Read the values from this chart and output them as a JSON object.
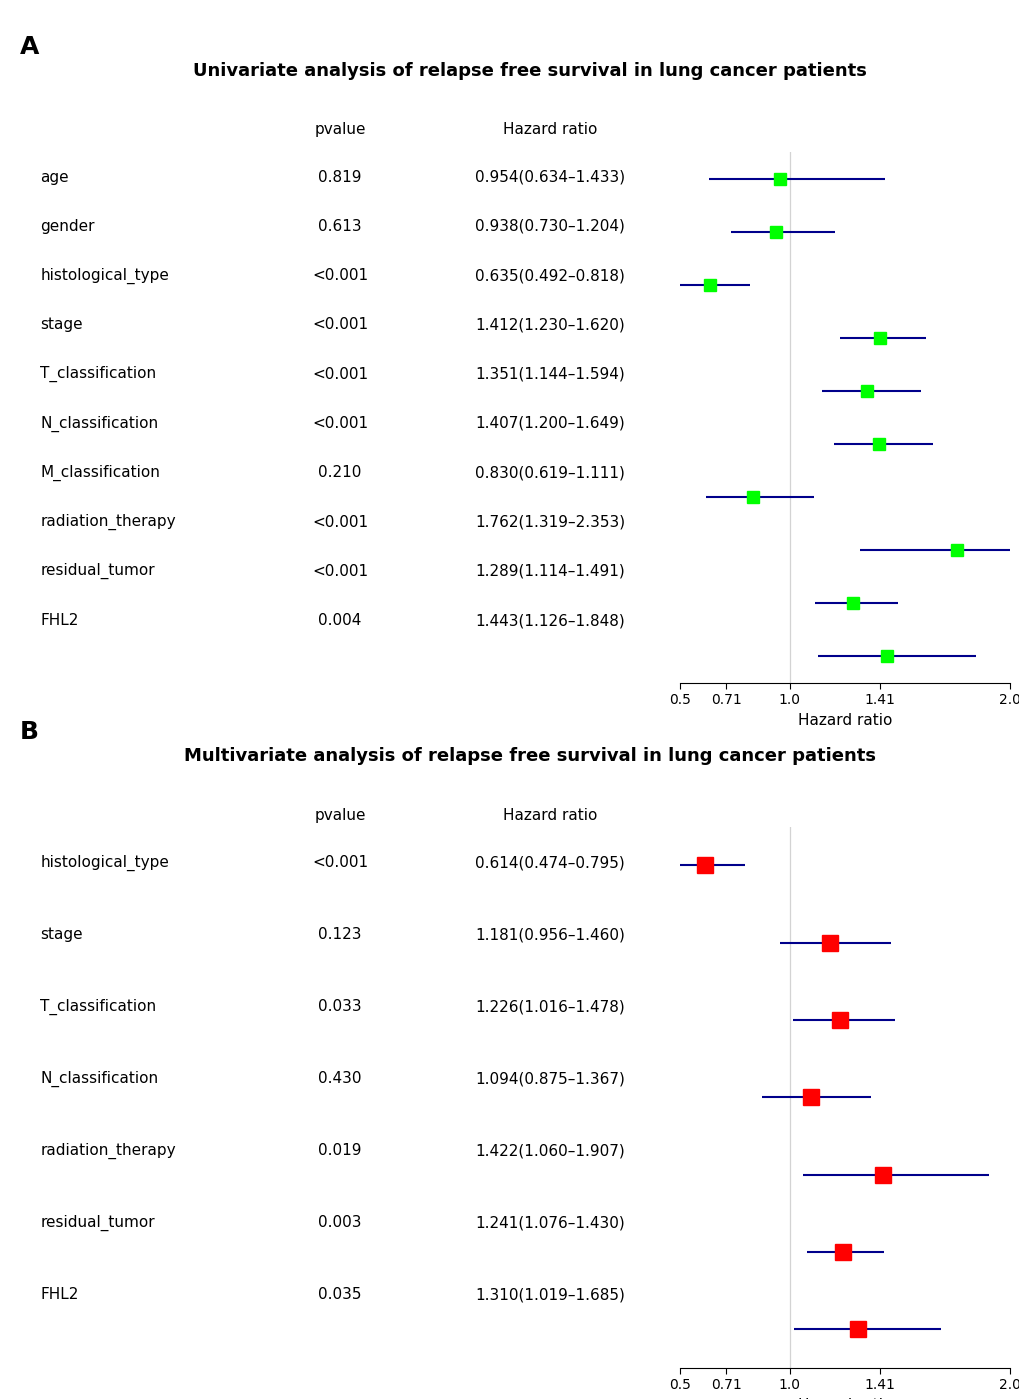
{
  "panel_A": {
    "title": "Univariate analysis of relapse free survival in lung cancer patients",
    "variables": [
      "age",
      "gender",
      "histological_type",
      "stage",
      "T_classification",
      "N_classification",
      "M_classification",
      "radiation_therapy",
      "residual_tumor",
      "FHL2"
    ],
    "pvalues": [
      "0.819",
      "0.613",
      "<0.001",
      "<0.001",
      "<0.001",
      "<0.001",
      "0.210",
      "<0.001",
      "<0.001",
      "0.004"
    ],
    "hr_labels": [
      "0.954(0.634–1.433)",
      "0.938(0.730–1.204)",
      "0.635(0.492–0.818)",
      "1.412(1.230–1.620)",
      "1.351(1.144–1.594)",
      "1.407(1.200–1.649)",
      "0.830(0.619–1.111)",
      "1.762(1.319–2.353)",
      "1.289(1.114–1.491)",
      "1.443(1.126–1.848)"
    ],
    "hr": [
      0.954,
      0.938,
      0.635,
      1.412,
      1.351,
      1.407,
      0.83,
      1.762,
      1.289,
      1.443
    ],
    "ci_low": [
      0.634,
      0.73,
      0.492,
      1.23,
      1.144,
      1.2,
      0.619,
      1.319,
      1.114,
      1.126
    ],
    "ci_high": [
      1.433,
      1.204,
      0.818,
      1.62,
      1.594,
      1.649,
      1.111,
      2.353,
      1.491,
      1.848
    ],
    "marker_color": "#00FF00",
    "line_color": "#00008B",
    "xlim": [
      0.5,
      2.0
    ],
    "xticks": [
      0.5,
      0.71,
      1.0,
      1.41,
      2.0
    ],
    "xlabel": "Hazard ratio",
    "ref_line": 1.0
  },
  "panel_B": {
    "title": "Multivariate analysis of relapse free survival in lung cancer patients",
    "variables": [
      "histological_type",
      "stage",
      "T_classification",
      "N_classification",
      "radiation_therapy",
      "residual_tumor",
      "FHL2"
    ],
    "pvalues": [
      "<0.001",
      "0.123",
      "0.033",
      "0.430",
      "0.019",
      "0.003",
      "0.035"
    ],
    "hr_labels": [
      "0.614(0.474–0.795)",
      "1.181(0.956–1.460)",
      "1.226(1.016–1.478)",
      "1.094(0.875–1.367)",
      "1.422(1.060–1.907)",
      "1.241(1.076–1.430)",
      "1.310(1.019–1.685)"
    ],
    "hr": [
      0.614,
      1.181,
      1.226,
      1.094,
      1.422,
      1.241,
      1.31
    ],
    "ci_low": [
      0.474,
      0.956,
      1.016,
      0.875,
      1.06,
      1.076,
      1.019
    ],
    "ci_high": [
      0.795,
      1.46,
      1.478,
      1.367,
      1.907,
      1.43,
      1.685
    ],
    "marker_color": "#FF0000",
    "line_color": "#00008B",
    "xlim": [
      0.5,
      2.0
    ],
    "xticks": [
      0.5,
      0.71,
      1.0,
      1.41,
      2.0
    ],
    "xlabel": "Hazard ratio",
    "ref_line": 1.0
  },
  "bg_color": "#FFFFFF",
  "text_color": "#000000",
  "var_fontsize": 11,
  "title_fontsize": 13,
  "tick_fontsize": 10,
  "header_fontsize": 11,
  "panel_label_fontsize": 18
}
